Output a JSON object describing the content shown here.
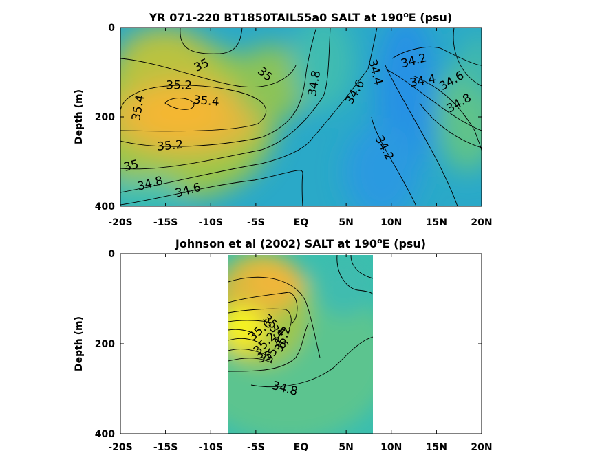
{
  "chart_data": [
    {
      "type": "heatmap",
      "title_main": "YR 071-220 BT1850TAIL55a0 SALT at 190",
      "title_sup": "o",
      "title_end": "E (psu)",
      "xlabel": "",
      "ylabel": "Depth (m)",
      "xlim": [
        -20,
        20
      ],
      "ylim": [
        0,
        400
      ],
      "y_reversed": true,
      "xticks": [
        -20,
        -15,
        -10,
        -5,
        0,
        5,
        10,
        15,
        20
      ],
      "xtick_labels": [
        "-20S",
        "-15S",
        "-10S",
        "-5S",
        "EQ",
        "5N",
        "10N",
        "15N",
        "20N"
      ],
      "yticks": [
        0,
        200,
        400
      ],
      "ytick_labels": [
        "0",
        "200",
        "400"
      ],
      "colormap": "parula",
      "contour_labels": [
        {
          "text": "35.4",
          "x": -18.0,
          "y": 180,
          "rot": -80
        },
        {
          "text": "35.2",
          "x": -13.5,
          "y": 130,
          "rot": 0
        },
        {
          "text": "35",
          "x": -11.0,
          "y": 85,
          "rot": -25
        },
        {
          "text": "35.4",
          "x": -10.5,
          "y": 165,
          "rot": 5
        },
        {
          "text": "35",
          "x": -4.0,
          "y": 105,
          "rot": 40
        },
        {
          "text": "34.8",
          "x": 1.5,
          "y": 125,
          "rot": -80
        },
        {
          "text": "34.6",
          "x": 6.0,
          "y": 145,
          "rot": -60
        },
        {
          "text": "34.4",
          "x": 8.2,
          "y": 100,
          "rot": 75
        },
        {
          "text": "34.2",
          "x": 12.5,
          "y": 75,
          "rot": -15
        },
        {
          "text": "34.4",
          "x": 13.5,
          "y": 120,
          "rot": -10
        },
        {
          "text": "34.6",
          "x": 16.7,
          "y": 120,
          "rot": -30
        },
        {
          "text": "34.8",
          "x": 17.5,
          "y": 170,
          "rot": -30
        },
        {
          "text": "34.2",
          "x": 9.2,
          "y": 270,
          "rot": 62
        },
        {
          "text": "35.2",
          "x": -14.5,
          "y": 265,
          "rot": -5
        },
        {
          "text": "35",
          "x": -18.8,
          "y": 310,
          "rot": -15
        },
        {
          "text": "34.8",
          "x": -16.7,
          "y": 350,
          "rot": -15
        },
        {
          "text": "34.6",
          "x": -12.5,
          "y": 365,
          "rot": -15
        }
      ]
    },
    {
      "type": "heatmap",
      "title_main": "Johnson et al (2002) SALT at 190",
      "title_sup": "o",
      "title_end": "E (psu)",
      "xlabel": "",
      "ylabel": "Depth (m)",
      "xlim": [
        -20,
        20
      ],
      "ylim": [
        0,
        400
      ],
      "y_reversed": true,
      "data_xrange": [
        -8,
        8
      ],
      "xticks": [
        -20,
        -15,
        -10,
        -5,
        0,
        5,
        10,
        15,
        20
      ],
      "xtick_labels": [
        "-20S",
        "-15S",
        "-10S",
        "-5S",
        "EQ",
        "5N",
        "10N",
        "15N",
        "20N"
      ],
      "yticks": [
        0,
        200,
        400
      ],
      "ytick_labels": [
        "0",
        "200",
        "400"
      ],
      "colormap": "parula",
      "contour_labels": [
        {
          "text": "35.6",
          "x": -4.5,
          "y": 170,
          "rot": -40
        },
        {
          "text": "35.4",
          "x": -3.0,
          "y": 160,
          "rot": 45
        },
        {
          "text": "35.6",
          "x": -2.5,
          "y": 185,
          "rot": 60
        },
        {
          "text": "35.2",
          "x": -4.0,
          "y": 200,
          "rot": -45
        },
        {
          "text": "35.4",
          "x": -3.0,
          "y": 215,
          "rot": -60
        },
        {
          "text": "35.2",
          "x": -2.0,
          "y": 190,
          "rot": -70
        },
        {
          "text": "35",
          "x": -4.0,
          "y": 230,
          "rot": -20
        },
        {
          "text": "34.8",
          "x": -1.8,
          "y": 300,
          "rot": 15
        }
      ]
    }
  ]
}
